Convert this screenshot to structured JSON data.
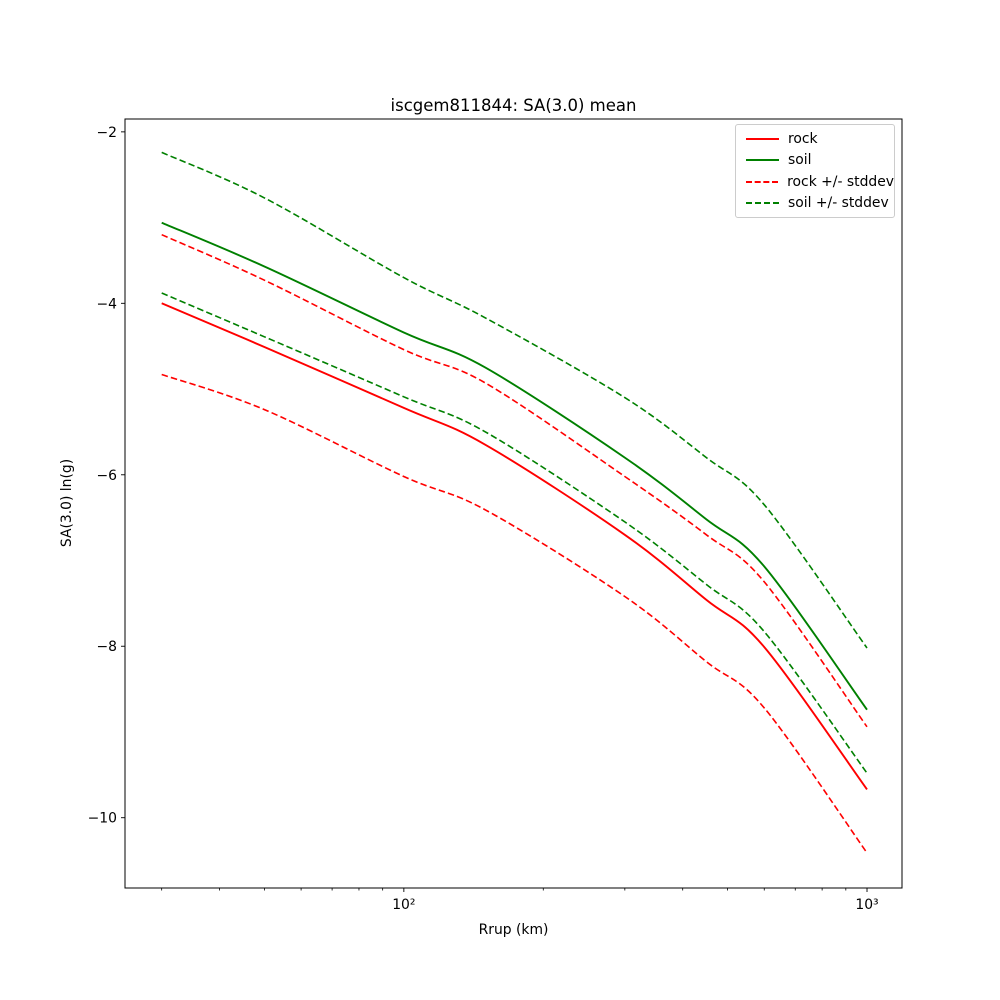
{
  "window": {
    "background": "#ffffff"
  },
  "chart_data": {
    "type": "line",
    "title": "iscgem811844: SA(3.0) mean",
    "xlabel": "Rrup (km)",
    "ylabel": "SA(3.0) ln(g)",
    "xscale": "log",
    "yscale": "linear",
    "grid": false,
    "xlim": [
      25,
      1190
    ],
    "ylim": [
      -10.82,
      -1.85
    ],
    "x": [
      30,
      50,
      100,
      150,
      300,
      450,
      600,
      1000
    ],
    "series": [
      {
        "name": "rock",
        "color": "#ff0000",
        "style": "solid",
        "values": [
          -4.0,
          -4.51,
          -5.22,
          -5.65,
          -6.7,
          -7.46,
          -8.01,
          -9.67
        ]
      },
      {
        "name": "soil",
        "color": "#008000",
        "style": "solid",
        "values": [
          -3.06,
          -3.57,
          -4.34,
          -4.75,
          -5.8,
          -6.52,
          -7.07,
          -8.74
        ]
      },
      {
        "name": "rock + stddev",
        "color": "#ff0000",
        "style": "dashed",
        "values": [
          -3.2,
          -3.73,
          -4.54,
          -4.93,
          -6.02,
          -6.7,
          -7.25,
          -8.94
        ]
      },
      {
        "name": "rock - stddev",
        "color": "#ff0000",
        "style": "dashed",
        "values": [
          -4.83,
          -5.24,
          -6.02,
          -6.41,
          -7.42,
          -8.18,
          -8.72,
          -10.41
        ]
      },
      {
        "name": "soil + stddev",
        "color": "#008000",
        "style": "dashed",
        "values": [
          -2.24,
          -2.77,
          -3.7,
          -4.17,
          -5.1,
          -5.8,
          -6.35,
          -8.02
        ]
      },
      {
        "name": "soil - stddev",
        "color": "#008000",
        "style": "dashed",
        "values": [
          -3.88,
          -4.39,
          -5.09,
          -5.5,
          -6.55,
          -7.28,
          -7.83,
          -9.48
        ]
      }
    ],
    "x_ticks_major": [
      {
        "value": 100,
        "label": "10²"
      },
      {
        "value": 1000,
        "label": "10³"
      }
    ],
    "x_ticks_minor": [
      30,
      40,
      50,
      60,
      70,
      80,
      90,
      200,
      300,
      400,
      500,
      600,
      700,
      800,
      900
    ],
    "y_ticks": [
      {
        "value": -2,
        "label": "−2"
      },
      {
        "value": -4,
        "label": "−4"
      },
      {
        "value": -6,
        "label": "−6"
      },
      {
        "value": -8,
        "label": "−8"
      },
      {
        "value": -10,
        "label": "−10"
      }
    ],
    "legend": {
      "position": "upper right",
      "entries": [
        {
          "label": "rock",
          "color": "#ff0000",
          "dash": false
        },
        {
          "label": "soil",
          "color": "#008000",
          "dash": false
        },
        {
          "label": "rock +/- stddev",
          "color": "#ff0000",
          "dash": true
        },
        {
          "label": "soil +/- stddev",
          "color": "#008000",
          "dash": true
        }
      ]
    }
  }
}
